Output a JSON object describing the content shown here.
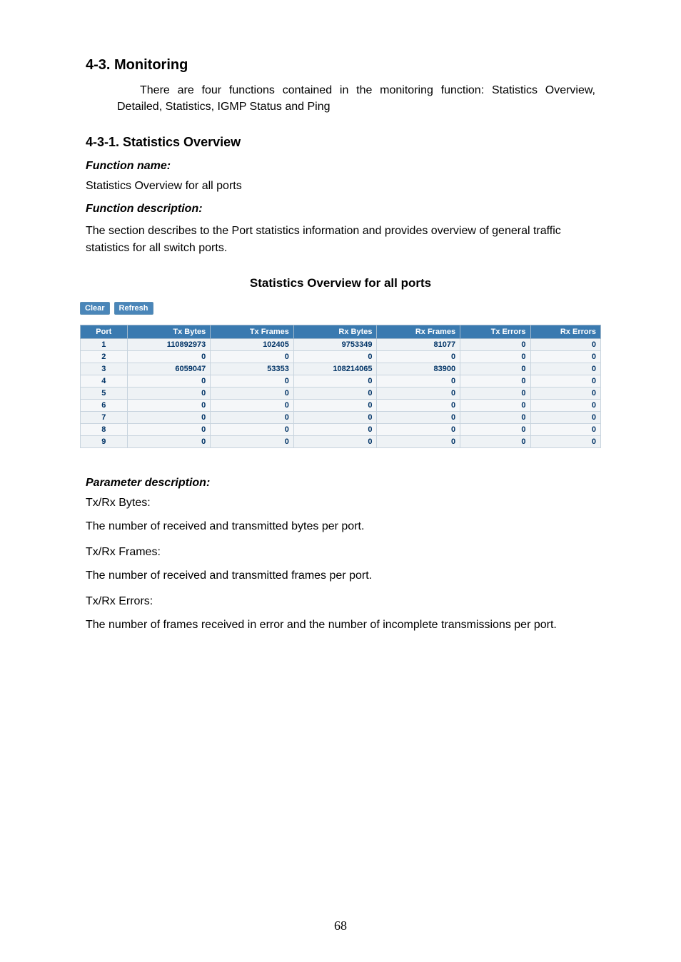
{
  "headings": {
    "section": "4-3. Monitoring",
    "subsection": "4-3-1. Statistics Overview"
  },
  "intro_para": "There are four functions contained in the monitoring function: Statistics Overview, Detailed, Statistics, IGMP Status and Ping",
  "labels": {
    "function_name": "Function name:",
    "function_desc": "Function description:",
    "param_desc": "Parameter description:"
  },
  "function_name_value": "Statistics Overview for all ports",
  "function_desc_value": "The section describes to the Port statistics information and provides overview of general traffic statistics for all switch ports.",
  "figure": {
    "title": "Statistics Overview for all ports",
    "buttons": {
      "clear": "Clear",
      "refresh": "Refresh"
    },
    "columns": [
      "Port",
      "Tx Bytes",
      "Tx Frames",
      "Rx Bytes",
      "Rx Frames",
      "Tx Errors",
      "Rx Errors"
    ],
    "col_widths_pct": [
      9,
      16,
      16,
      16,
      16,
      13.5,
      13.5
    ],
    "header_bg": "#3a7ab0",
    "header_fg": "#ffffff",
    "cell_fg": "#003366",
    "row_bg_odd": "#eef2f5",
    "row_bg_even": "#f5f7f9",
    "border_color": "#c8d4de",
    "rows": [
      [
        "1",
        "110892973",
        "102405",
        "9753349",
        "81077",
        "0",
        "0"
      ],
      [
        "2",
        "0",
        "0",
        "0",
        "0",
        "0",
        "0"
      ],
      [
        "3",
        "6059047",
        "53353",
        "108214065",
        "83900",
        "0",
        "0"
      ],
      [
        "4",
        "0",
        "0",
        "0",
        "0",
        "0",
        "0"
      ],
      [
        "5",
        "0",
        "0",
        "0",
        "0",
        "0",
        "0"
      ],
      [
        "6",
        "0",
        "0",
        "0",
        "0",
        "0",
        "0"
      ],
      [
        "7",
        "0",
        "0",
        "0",
        "0",
        "0",
        "0"
      ],
      [
        "8",
        "0",
        "0",
        "0",
        "0",
        "0",
        "0"
      ],
      [
        "9",
        "0",
        "0",
        "0",
        "0",
        "0",
        "0"
      ]
    ]
  },
  "params": [
    {
      "name": "Tx/Rx Bytes:",
      "desc": "The number of received and transmitted bytes per port."
    },
    {
      "name": "Tx/Rx Frames:",
      "desc": "The number of received and transmitted frames per port."
    },
    {
      "name": "Tx/Rx Errors:",
      "desc": "The number of frames received in error and the number of incomplete transmissions per port."
    }
  ],
  "page_number": "68"
}
